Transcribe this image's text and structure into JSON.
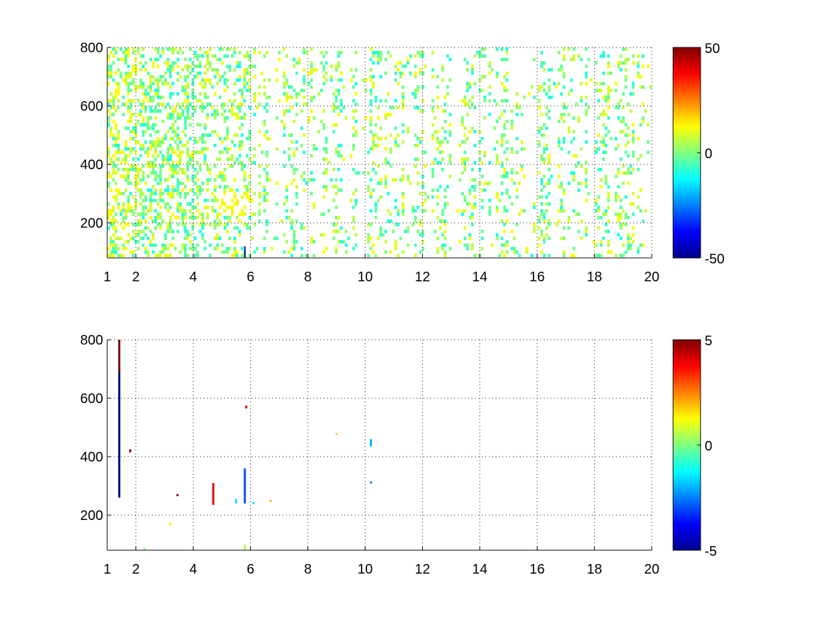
{
  "chart_data": [
    {
      "type": "heatmap",
      "title": "",
      "xlabel": "",
      "ylabel": "",
      "xlim": [
        1,
        20
      ],
      "ylim": [
        80,
        800
      ],
      "x_ticks": [
        "1",
        "2",
        "4",
        "6",
        "8",
        "10",
        "12",
        "14",
        "16",
        "18",
        "20"
      ],
      "x_tick_values": [
        1,
        2,
        4,
        6,
        8,
        10,
        12,
        14,
        16,
        18,
        20
      ],
      "y_ticks": [
        "200",
        "400",
        "600",
        "800"
      ],
      "y_tick_values": [
        200,
        400,
        600,
        800
      ],
      "grid": true,
      "colormap": "jet",
      "colorbar": {
        "min": -50,
        "max": 50,
        "ticks": [
          "50",
          "0",
          "-50"
        ],
        "tick_values": [
          50,
          0,
          -50
        ]
      },
      "description": "Sparse field of small values (mostly -15 to 15) across all x from 1 to 20; white where missing. Denser toward low x; cluster of yellow (~+10) values near x=5.8, y=250; blue streak near x=5.8, y=100."
    },
    {
      "type": "heatmap",
      "title": "",
      "xlabel": "",
      "ylabel": "",
      "xlim": [
        1,
        20
      ],
      "ylim": [
        80,
        800
      ],
      "x_ticks": [
        "1",
        "2",
        "4",
        "6",
        "8",
        "10",
        "12",
        "14",
        "16",
        "18",
        "20"
      ],
      "x_tick_values": [
        1,
        2,
        4,
        6,
        8,
        10,
        12,
        14,
        16,
        18,
        20
      ],
      "y_ticks": [
        "200",
        "400",
        "600",
        "800"
      ],
      "y_tick_values": [
        200,
        400,
        600,
        800
      ],
      "grid": true,
      "colormap": "jet",
      "colorbar": {
        "min": -5,
        "max": 5,
        "ticks": [
          "5",
          "0",
          "-5"
        ],
        "tick_values": [
          5,
          0,
          -5
        ]
      },
      "points": [
        {
          "x": 1.42,
          "y0": 260,
          "y1": 800,
          "value": -5
        },
        {
          "x": 1.42,
          "y0": 690,
          "y1": 800,
          "value": 5
        },
        {
          "x": 1.8,
          "y0": 415,
          "y1": 425,
          "value": 5
        },
        {
          "x": 3.45,
          "y0": 265,
          "y1": 272,
          "value": 5
        },
        {
          "x": 4.7,
          "y0": 235,
          "y1": 310,
          "value": 4
        },
        {
          "x": 5.8,
          "y0": 240,
          "y1": 360,
          "value": -3
        },
        {
          "x": 5.5,
          "y0": 240,
          "y1": 255,
          "value": -1.5
        },
        {
          "x": 6.1,
          "y0": 238,
          "y1": 245,
          "value": -1.5
        },
        {
          "x": 5.85,
          "y0": 565,
          "y1": 575,
          "value": 4
        },
        {
          "x": 6.7,
          "y0": 245,
          "y1": 252,
          "value": 2
        },
        {
          "x": 9.0,
          "y0": 475,
          "y1": 480,
          "value": 2
        },
        {
          "x": 10.2,
          "y0": 435,
          "y1": 460,
          "value": -2
        },
        {
          "x": 10.2,
          "y0": 308,
          "y1": 315,
          "value": -2.5
        },
        {
          "x": 2.3,
          "y0": 80,
          "y1": 88,
          "value": 0
        },
        {
          "x": 3.2,
          "y0": 165,
          "y1": 175,
          "value": 1
        },
        {
          "x": 5.8,
          "y0": 80,
          "y1": 100,
          "value": 0.5
        }
      ]
    }
  ]
}
